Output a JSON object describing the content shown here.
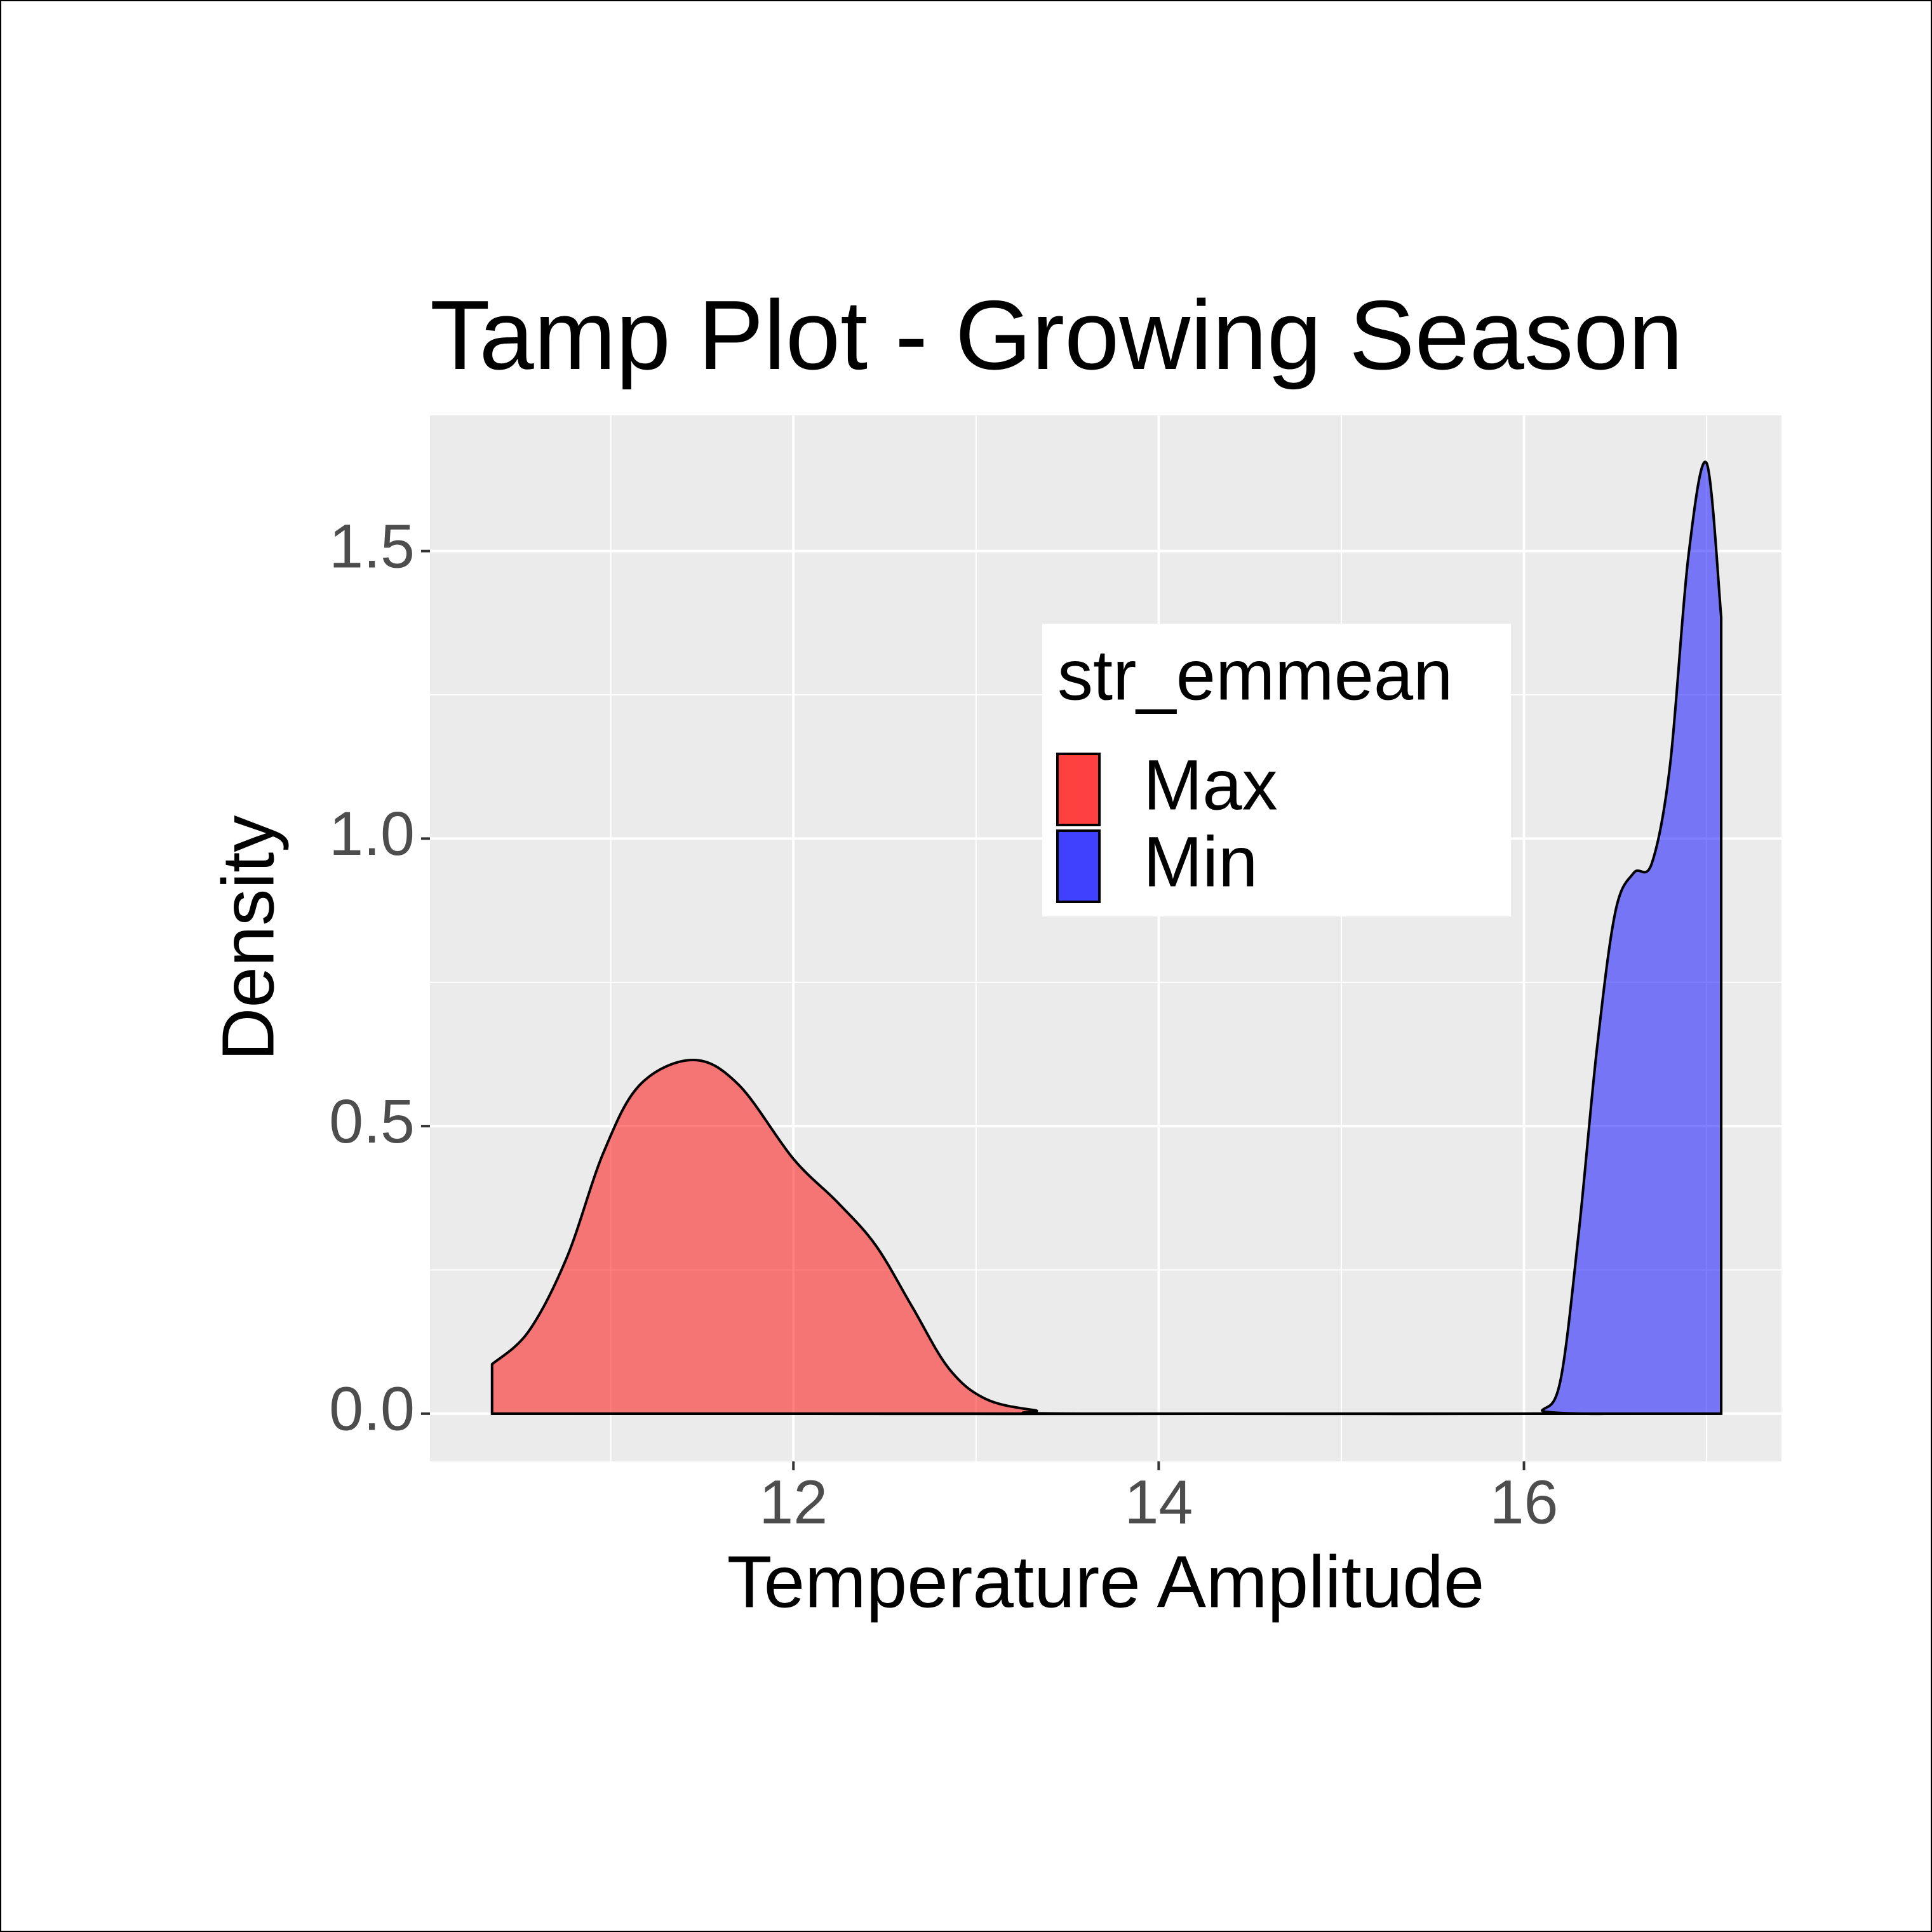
{
  "chart_data": {
    "type": "density",
    "title": "Tamp Plot - Growing Season",
    "x_label": "Temperature Amplitude",
    "y_label": "Density",
    "legend_title": "str_emmean",
    "legend_position": "inside",
    "grid": true,
    "alpha": 0.5,
    "xlim": [
      10.01,
      17.41
    ],
    "ylim": [
      -0.083,
      1.736
    ],
    "xticks": [
      12,
      14,
      16
    ],
    "yticks": [
      {
        "value": 0,
        "label": "0.0"
      },
      0.5,
      {
        "value": 1,
        "label": "1.0"
      },
      1.5
    ],
    "xminor": [
      11,
      13,
      15,
      17
    ],
    "yminor": [
      0.25,
      0.75,
      1.25
    ],
    "series": [
      {
        "name": "Max",
        "color": "#ff0000",
        "x": [
          10.35,
          10.55,
          10.76,
          10.96,
          11.16,
          11.45,
          11.7,
          12.0,
          12.24,
          12.45,
          12.65,
          12.85,
          13.05,
          13.32,
          13.6,
          17.08
        ],
        "values": [
          0.086,
          0.143,
          0.272,
          0.454,
          0.572,
          0.615,
          0.572,
          0.443,
          0.368,
          0.293,
          0.186,
          0.079,
          0.026,
          0.006,
          0,
          0
        ]
      },
      {
        "name": "Min",
        "color": "#0000ff",
        "x": [
          10.35,
          16.0,
          16.1,
          16.2,
          16.3,
          16.4,
          16.5,
          16.6,
          16.7,
          16.8,
          16.9,
          17.0,
          17.08
        ],
        "values": [
          0,
          0,
          0.006,
          0.058,
          0.315,
          0.636,
          0.872,
          0.94,
          0.957,
          1.128,
          1.49,
          1.653,
          1.385
        ]
      }
    ]
  }
}
